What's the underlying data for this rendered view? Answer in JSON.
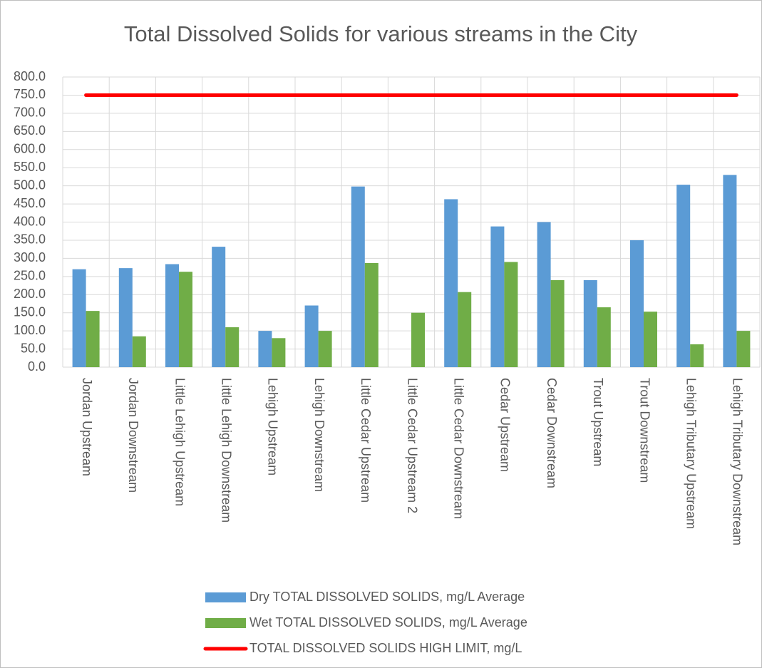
{
  "chart_data": {
    "type": "bar",
    "title": "Total Dissolved Solids for various streams in the City",
    "categories": [
      "Jordan Upstream",
      "Jordan Downstream",
      "Little Lehigh Upstream",
      "Little Lehigh Downstream",
      "Lehigh Upstream",
      "Lehigh Downstream",
      "Little Cedar Upstream",
      "Little Cedar Upstream 2",
      "Little Cedar Downstream",
      "Cedar Upstream",
      "Cedar Downstream",
      "Trout Upstream",
      "Trout Downstream",
      "Lehigh Tributary Upstream",
      "Lehigh Tributary Downstream"
    ],
    "series": [
      {
        "name": "Dry TOTAL DISSOLVED SOLIDS, mg/L Average",
        "type": "bar",
        "color": "#5b9bd5",
        "values": [
          270,
          273,
          284,
          332,
          100,
          170,
          498,
          null,
          463,
          388,
          400,
          240,
          350,
          503,
          530
        ]
      },
      {
        "name": "Wet TOTAL DISSOLVED SOLIDS, mg/L Average",
        "type": "bar",
        "color": "#70ad47",
        "values": [
          155,
          85,
          263,
          110,
          80,
          100,
          287,
          150,
          207,
          290,
          240,
          165,
          153,
          63,
          100
        ]
      },
      {
        "name": "TOTAL DISSOLVED SOLIDS HIGH LIMIT, mg/L",
        "type": "line",
        "color": "#ff0000",
        "values": [
          750,
          750,
          750,
          750,
          750,
          750,
          750,
          750,
          750,
          750,
          750,
          750,
          750,
          750,
          750
        ]
      }
    ],
    "ylim": [
      0,
      800
    ],
    "yticks": [
      {
        "value": 0,
        "label": "0.0"
      },
      {
        "value": 50,
        "label": "50.0"
      },
      {
        "value": 100,
        "label": "100.0"
      },
      {
        "value": 150,
        "label": "150.0"
      },
      {
        "value": 200,
        "label": "200.0"
      },
      {
        "value": 250,
        "label": "250.0"
      },
      {
        "value": 300,
        "label": "300.0"
      },
      {
        "value": 350,
        "label": "350.0"
      },
      {
        "value": 400,
        "label": "400.0"
      },
      {
        "value": 450,
        "label": "450.0"
      },
      {
        "value": 500,
        "label": "500.0"
      },
      {
        "value": 550,
        "label": "550.0"
      },
      {
        "value": 600,
        "label": "600.0"
      },
      {
        "value": 650,
        "label": "650.0"
      },
      {
        "value": 700,
        "label": "700.0"
      },
      {
        "value": 750,
        "label": "750.0"
      },
      {
        "value": 800,
        "label": "800.0"
      }
    ],
    "grid": true,
    "legend": "bottom"
  }
}
